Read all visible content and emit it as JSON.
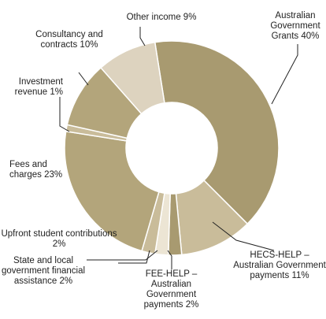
{
  "chart_data": {
    "type": "donut",
    "categories": [
      "Australian Government Grants",
      "HECS-HELP – Australian Government payments",
      "FEE-HELP – Australian Government payments",
      "State and local government financial assistance",
      "Upfront student contributions",
      "Fees and charges",
      "Investment revenue",
      "Consultancy and contracts",
      "Other income"
    ],
    "values": [
      40,
      11,
      2,
      2,
      2,
      23,
      1,
      10,
      9
    ],
    "value_labels": [
      "40%",
      "11%",
      "2%",
      "2%",
      "2%",
      "23%",
      "1%",
      "10%",
      "9%"
    ],
    "colors": [
      "#a89a70",
      "#c9bc9a",
      "#a89a70",
      "#ece5d4",
      "#c9bc9a",
      "#b3a57b",
      "#c9bc9a",
      "#b3a57b",
      "#ddd3bf"
    ]
  }
}
